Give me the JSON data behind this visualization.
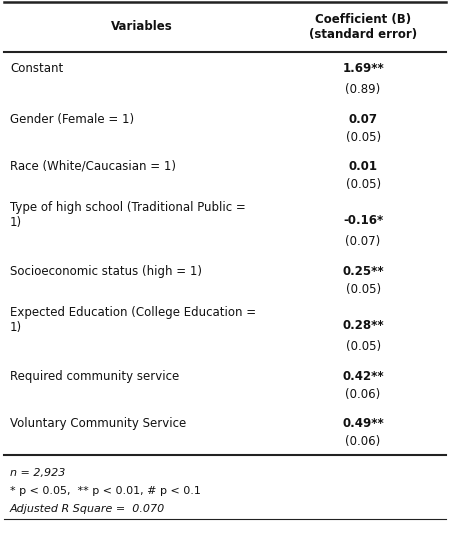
{
  "col1_header": "Variables",
  "col2_header": "Coefficient (B)\n(standard error)",
  "rows": [
    {
      "variable": "Constant",
      "coeff": "1.69**",
      "se": "(0.89)"
    },
    {
      "variable": "Gender (Female = 1)",
      "coeff": "0.07",
      "se": "(0.05)"
    },
    {
      "variable": "Race (White/Caucasian = 1)",
      "coeff": "0.01",
      "se": "(0.05)"
    },
    {
      "variable": "Type of high school (Traditional Public =\n1)",
      "coeff": "-0.16*",
      "se": "(0.07)"
    },
    {
      "variable": "Socioeconomic status (high = 1)",
      "coeff": "0.25**",
      "se": "(0.05)"
    },
    {
      "variable": "Expected Education (College Education =\n1)",
      "coeff": "0.28**",
      "se": "(0.05)"
    },
    {
      "variable": "Required community service",
      "coeff": "0.42**",
      "se": "(0.06)"
    },
    {
      "variable": "Voluntary Community Service",
      "coeff": "0.49**",
      "se": "(0.06)"
    }
  ],
  "footnotes": [
    {
      "text": "n = 2,923",
      "italic": true
    },
    {
      "text": "* p < 0.05,  ** p < 0.01, # p < 0.1",
      "italic": false
    },
    {
      "text": "Adjusted R Square =  0.070",
      "italic": true
    }
  ],
  "bg_color": "#ffffff",
  "header_bg": "#ffffff",
  "thick_line_color": "#222222",
  "thin_line_color": "#222222",
  "text_color": "#111111",
  "font_size": 8.5,
  "col_split": 0.625
}
